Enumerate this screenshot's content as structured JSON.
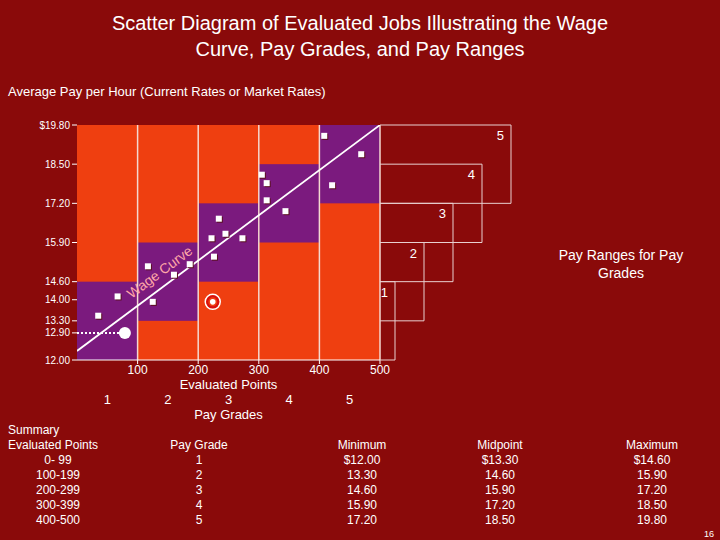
{
  "chart_data": {
    "type": "scatter",
    "title": [
      "Scatter Diagram of Evaluated Jobs Illustrating the Wage",
      "Curve, Pay Grades, and Pay Ranges"
    ],
    "y_label": "Average Pay per Hour (Current Rates or Market Rates)",
    "x_label": "Evaluated Points",
    "x_label2": "Pay Grades",
    "x": [
      35,
      67,
      125,
      117,
      160,
      186,
      234,
      222,
      226,
      245,
      273,
      305,
      313,
      313,
      344,
      408,
      421,
      469
    ],
    "values": [
      13.47,
      14.11,
      13.93,
      15.11,
      14.83,
      15.18,
      16.69,
      16.04,
      15.43,
      16.19,
      16.04,
      18.15,
      17.87,
      17.3,
      16.94,
      19.44,
      17.8,
      18.83
    ],
    "color": "#ffffff",
    "marker": "square",
    "circled_point": {
      "x": 224,
      "value": 13.93
    },
    "marked_point": {
      "x": 79,
      "value": 12.9
    },
    "wage_curve": {
      "label": "Wage Curve",
      "x": [
        0,
        500
      ],
      "values": [
        12.3,
        19.8
      ]
    },
    "pay_grades": [
      {
        "label": "1",
        "points": [
          0,
          100
        ],
        "min": 12.0,
        "max": 14.6
      },
      {
        "label": "2",
        "points": [
          100,
          200
        ],
        "min": 13.3,
        "max": 15.9
      },
      {
        "label": "3",
        "points": [
          200,
          300
        ],
        "min": 14.6,
        "max": 17.2
      },
      {
        "label": "4",
        "points": [
          300,
          400
        ],
        "min": 15.9,
        "max": 18.5
      },
      {
        "label": "5",
        "points": [
          400,
          500
        ],
        "min": 17.2,
        "max": 19.8
      }
    ],
    "pay_ranges_label": "Pay Ranges for Pay Grades",
    "xlim": [
      0,
      500
    ],
    "xticks": [
      100,
      200,
      300,
      400,
      500
    ],
    "ylim": [
      12,
      19.8
    ],
    "yticks": [
      {
        "value": 19.8,
        "label": "$19.80"
      },
      {
        "value": 18.5,
        "label": "18.50"
      },
      {
        "value": 17.2,
        "label": "17.20"
      },
      {
        "value": 15.9,
        "label": "15.90"
      },
      {
        "value": 14.6,
        "label": "14.60"
      },
      {
        "value": 14.0,
        "label": "14.00"
      },
      {
        "value": 13.3,
        "label": "13.30"
      },
      {
        "value": 12.9,
        "label": "12.90"
      },
      {
        "value": 12.0,
        "label": "12.00"
      }
    ],
    "grid": true
  },
  "summary": {
    "title": "Summary",
    "headers": [
      "Evaluated Points",
      "Pay Grade",
      "Minimum",
      "Midpoint",
      "Maximum"
    ],
    "rows": [
      [
        "0- 99",
        "1",
        "$12.00",
        "$13.30",
        "$14.60"
      ],
      [
        "100-199",
        "2",
        "13.30",
        "14.60",
        "15.90"
      ],
      [
        "200-299",
        "3",
        "14.60",
        "15.90",
        "17.20"
      ],
      [
        "300-399",
        "4",
        "15.90",
        "17.20",
        "18.50"
      ],
      [
        "400-500",
        "5",
        "17.20",
        "18.50",
        "19.80"
      ]
    ]
  },
  "page_number": "16"
}
